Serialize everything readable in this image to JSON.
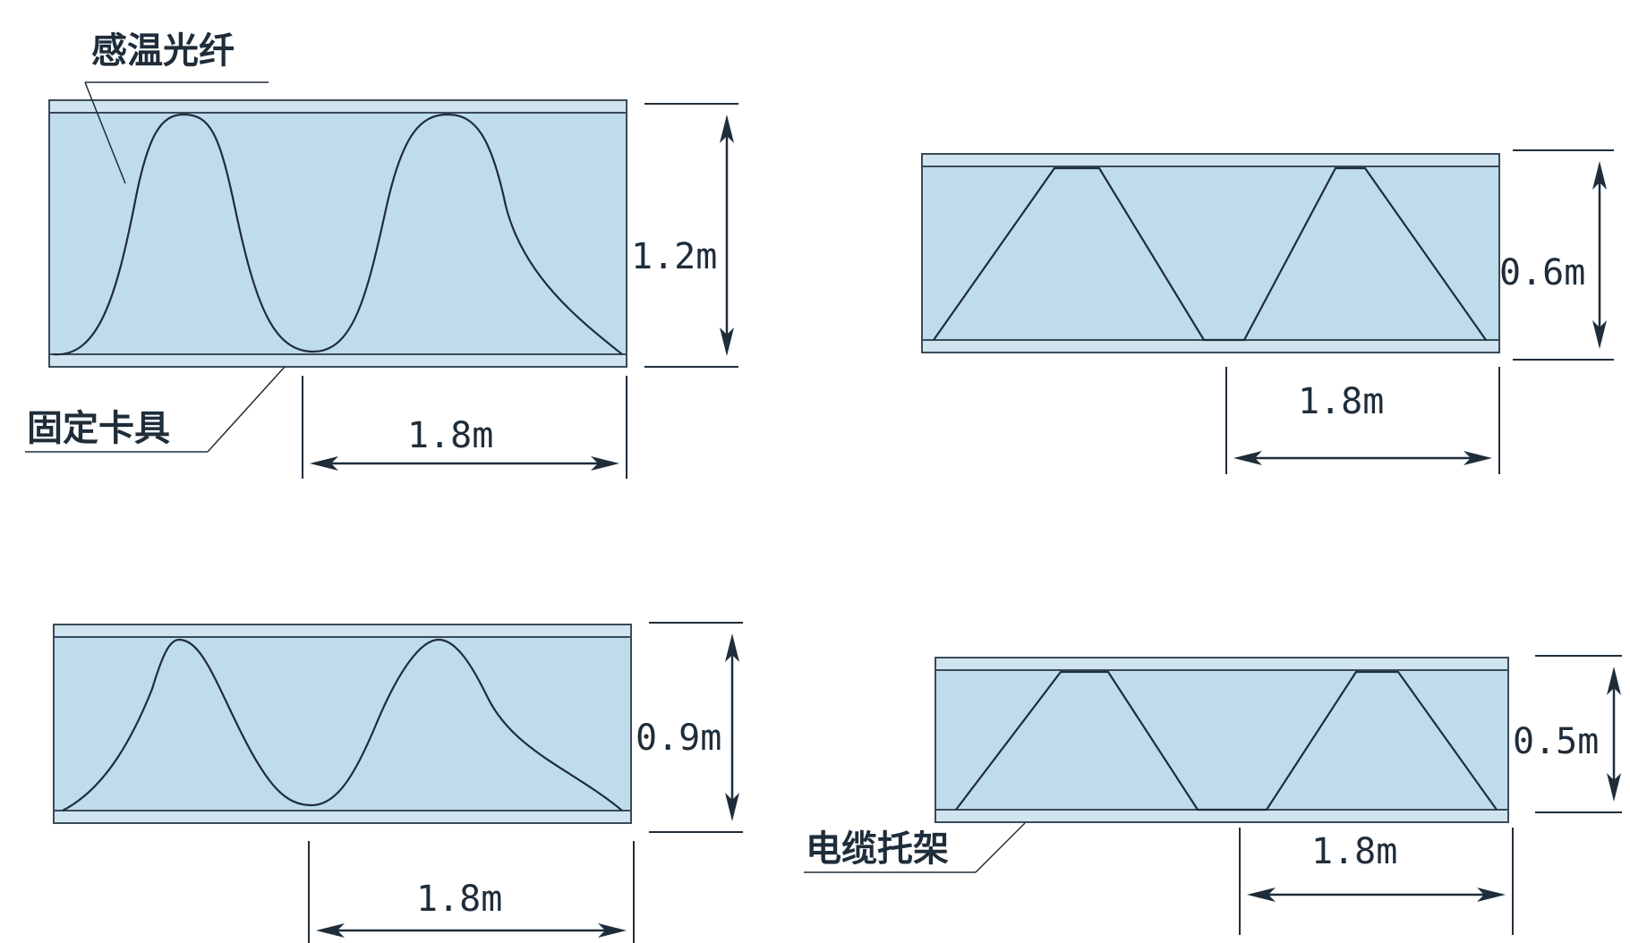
{
  "labels": {
    "fiber": "感温光纤",
    "clamp": "固定卡具",
    "tray": "电缆托架"
  },
  "panels": [
    {
      "id": "tl",
      "height_label": "1.2m",
      "width_label": "1.8m",
      "pattern": "smooth-wave"
    },
    {
      "id": "tr",
      "height_label": "0.6m",
      "width_label": "1.8m",
      "pattern": "trapezoid-zigzag"
    },
    {
      "id": "bl",
      "height_label": "0.9m",
      "width_label": "1.8m",
      "pattern": "smooth-wave"
    },
    {
      "id": "br",
      "height_label": "0.5m",
      "width_label": "1.8m",
      "pattern": "trapezoid-zigzag"
    }
  ],
  "colors": {
    "tray_fill": "#bfdcec",
    "rail_fill": "#cfe4ef",
    "line": "#1f2d3a"
  }
}
